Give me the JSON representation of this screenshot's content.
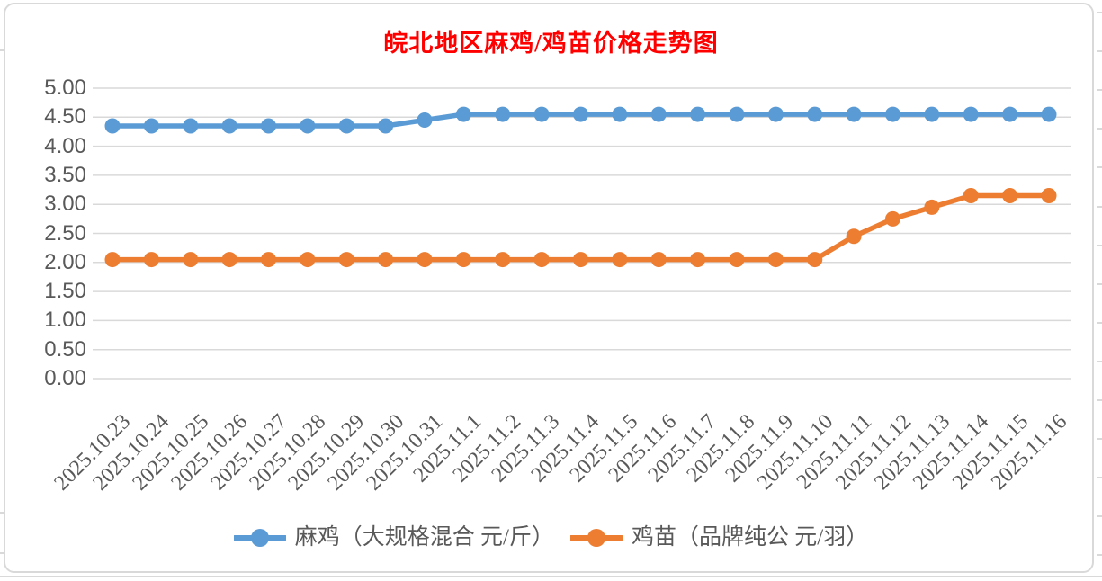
{
  "chart_data": {
    "type": "line",
    "title": "皖北地区麻鸡/鸡苗价格走势图",
    "categories": [
      "2025.10.23",
      "2025.10.24",
      "2025.10.25",
      "2025.10.26",
      "2025.10.27",
      "2025.10.28",
      "2025.10.29",
      "2025.10.30",
      "2025.10.31",
      "2025.11.1",
      "2025.11.2",
      "2025.11.3",
      "2025.11.4",
      "2025.11.5",
      "2025.11.6",
      "2025.11.7",
      "2025.11.8",
      "2025.11.9",
      "2025.11.10",
      "2025.11.11",
      "2025.11.12",
      "2025.11.13",
      "2025.11.14",
      "2025.11.15",
      "2025.11.16"
    ],
    "series": [
      {
        "name": "麻鸡（大规格混合 元/斤）",
        "color": "#5B9BD5",
        "values": [
          4.35,
          4.35,
          4.35,
          4.35,
          4.35,
          4.35,
          4.35,
          4.35,
          4.45,
          4.55,
          4.55,
          4.55,
          4.55,
          4.55,
          4.55,
          4.55,
          4.55,
          4.55,
          4.55,
          4.55,
          4.55,
          4.55,
          4.55,
          4.55,
          4.55
        ]
      },
      {
        "name": "鸡苗（品牌纯公 元/羽）",
        "color": "#ED7D31",
        "values": [
          2.05,
          2.05,
          2.05,
          2.05,
          2.05,
          2.05,
          2.05,
          2.05,
          2.05,
          2.05,
          2.05,
          2.05,
          2.05,
          2.05,
          2.05,
          2.05,
          2.05,
          2.05,
          2.05,
          2.45,
          2.75,
          2.95,
          3.15,
          3.15,
          3.15
        ]
      }
    ],
    "ylim": [
      0,
      5
    ],
    "y_tick_step": 0.5,
    "y_ticks": [
      "0.00",
      "0.50",
      "1.00",
      "1.50",
      "2.00",
      "2.50",
      "3.00",
      "3.50",
      "4.00",
      "4.50",
      "5.00"
    ],
    "grid": true,
    "legend_position": "bottom",
    "colors": {
      "title": "#FF0000",
      "axis_labels": "#595959",
      "gridlines": "#D9D9D9",
      "frame_border": "#D9D9D9",
      "background": "#FFFFFF"
    }
  }
}
